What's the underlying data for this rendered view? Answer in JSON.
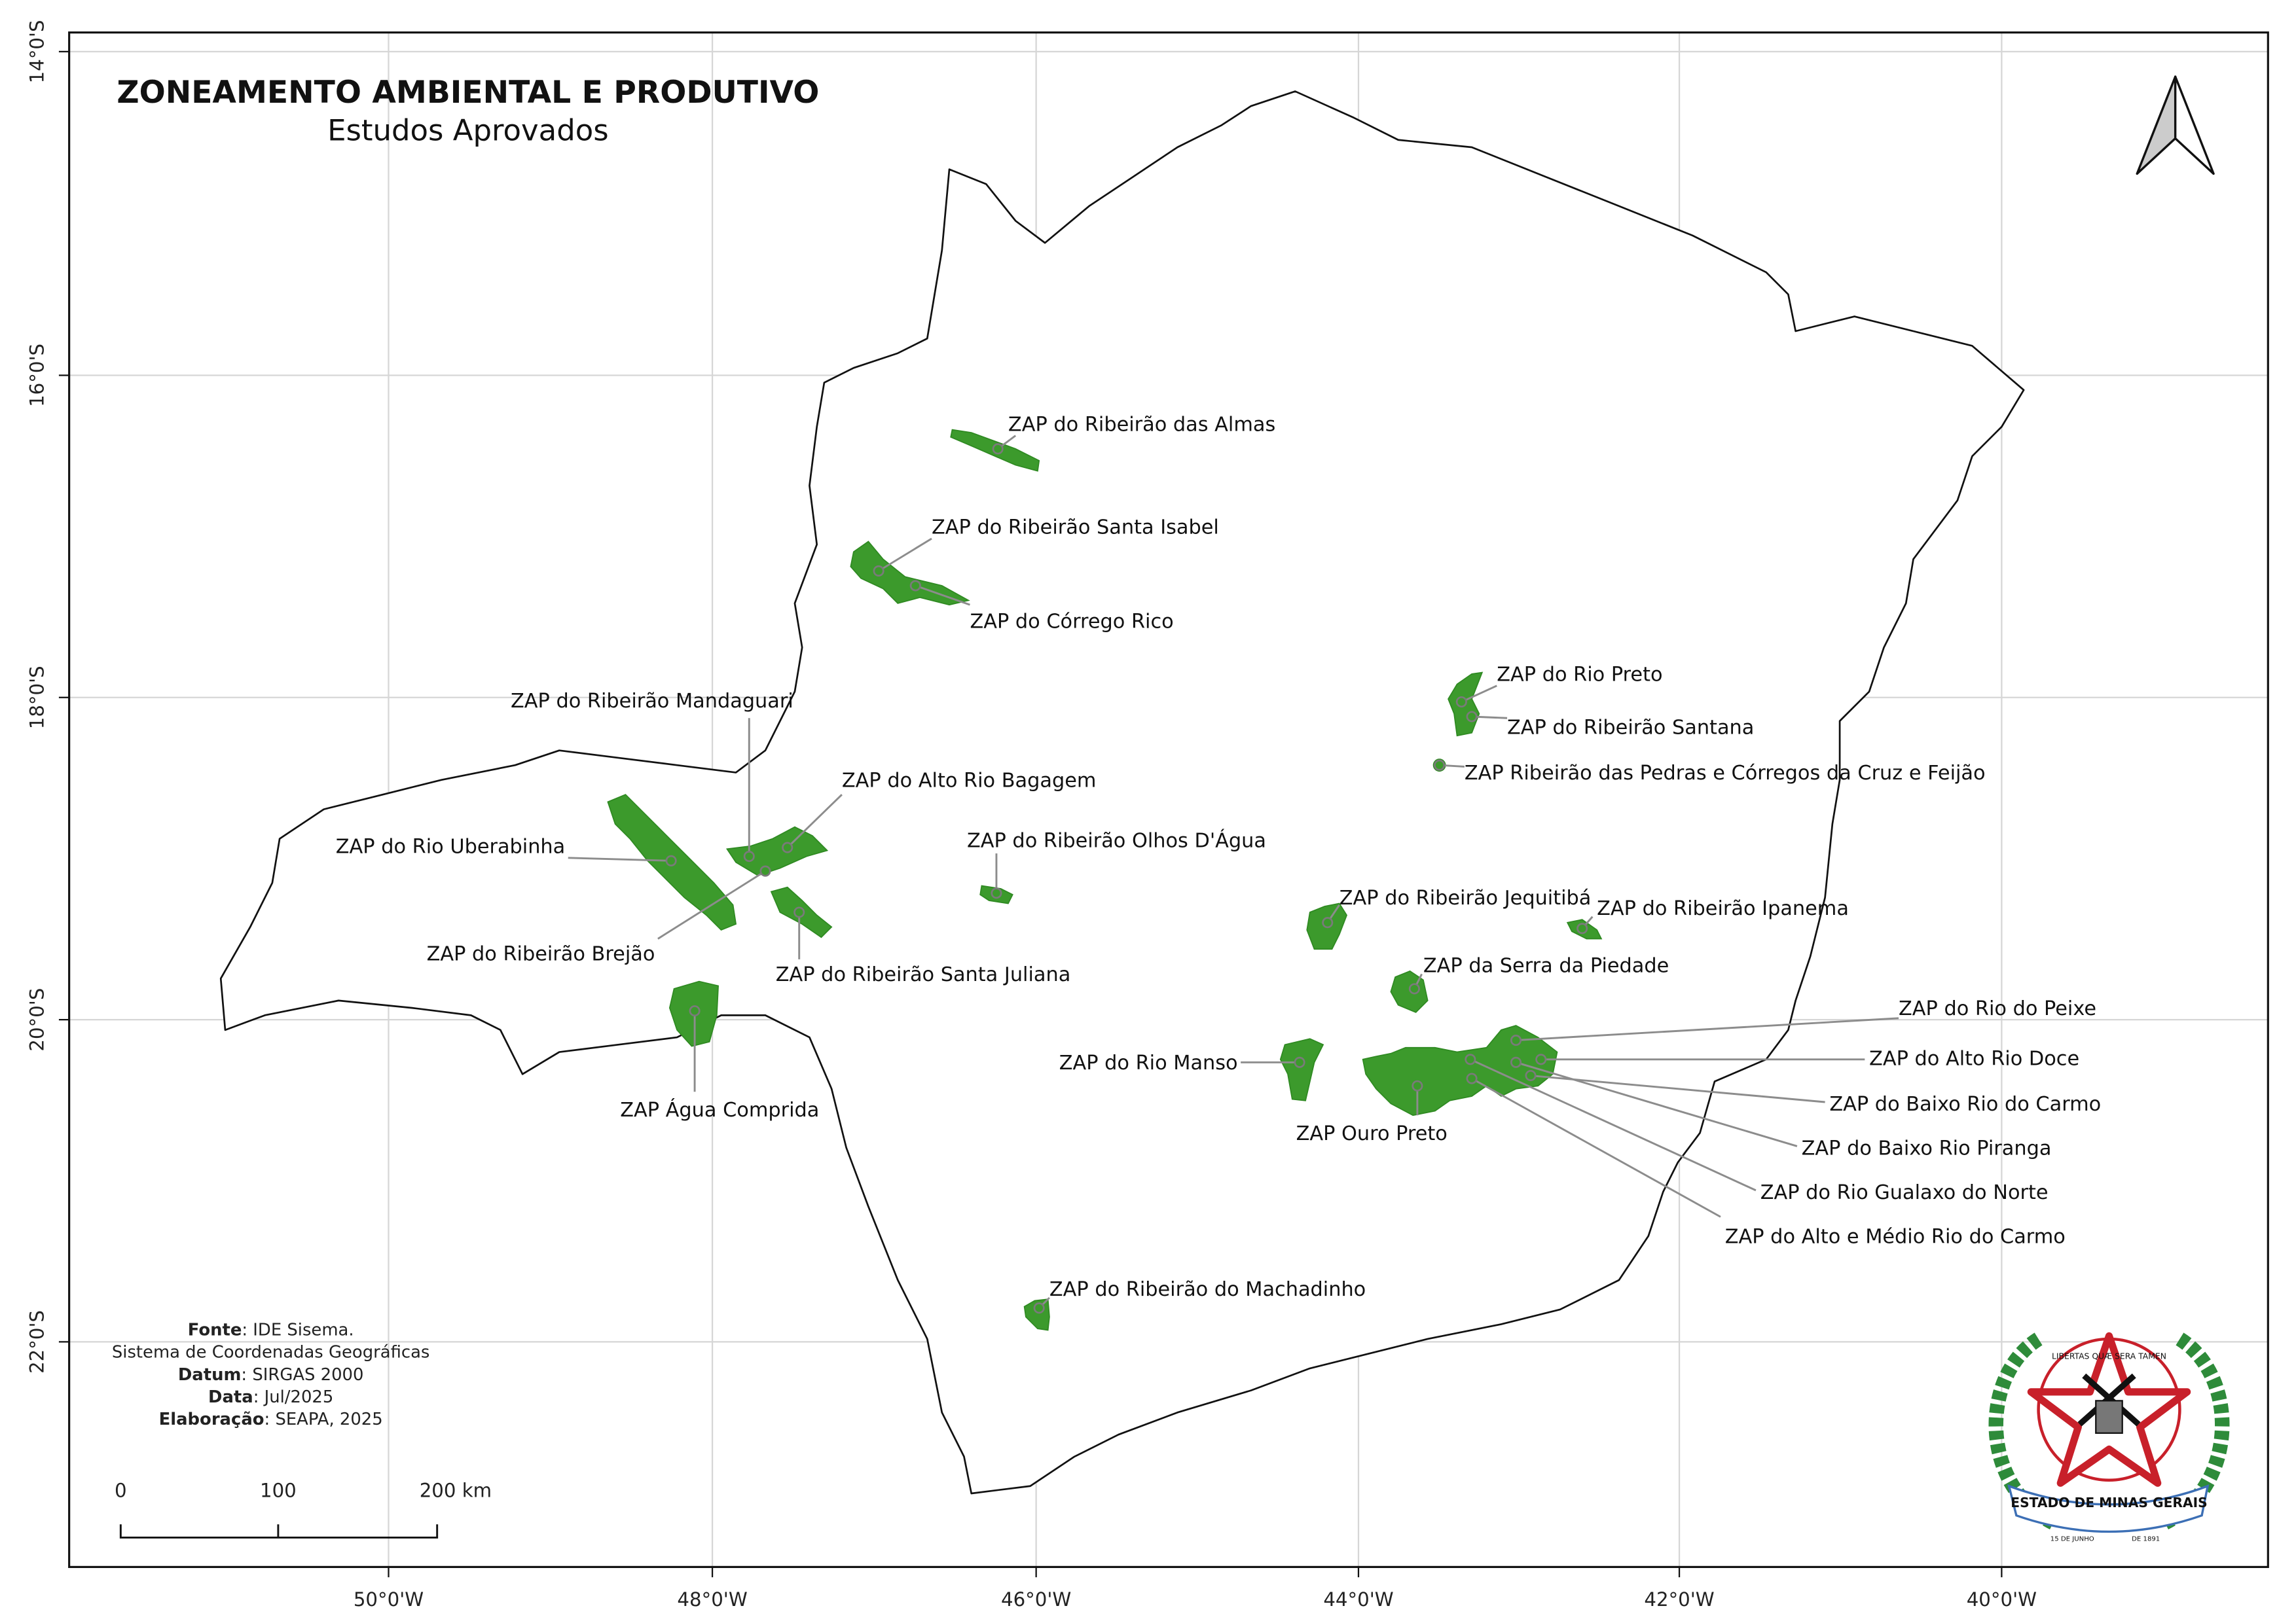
{
  "header": {
    "title": "ZONEAMENTO AMBIENTAL E PRODUTIVO",
    "subtitle": "Estudos Aprovados"
  },
  "map": {
    "latitude_labels": [
      "14°0'S",
      "16°0'S",
      "18°0'S",
      "20°0'S",
      "22°0'S"
    ],
    "longitude_labels": [
      "50°0'W",
      "48°0'W",
      "46°0'W",
      "44°0'W",
      "42°0'W",
      "40°0'W"
    ]
  },
  "zones": [
    {
      "label": "ZAP do Ribeirão das Almas"
    },
    {
      "label": "ZAP do Ribeirão Santa Isabel"
    },
    {
      "label": "ZAP do Córrego Rico"
    },
    {
      "label": "ZAP do Rio Preto"
    },
    {
      "label": "ZAP do Ribeirão Santana"
    },
    {
      "label": "ZAP Ribeirão das Pedras e Córregos da Cruz e Feijão"
    },
    {
      "label": "ZAP do Ribeirão Mandaguari"
    },
    {
      "label": "ZAP do Alto Rio Bagagem"
    },
    {
      "label": "ZAP do Ribeirão Olhos D'Água"
    },
    {
      "label": "ZAP do Rio Uberabinha"
    },
    {
      "label": "ZAP do Ribeirão Brejão"
    },
    {
      "label": "ZAP do Ribeirão Santa Juliana"
    },
    {
      "label": "ZAP do Ribeirão Jequitibá"
    },
    {
      "label": "ZAP do Ribeirão Ipanema"
    },
    {
      "label": "ZAP da Serra da Piedade"
    },
    {
      "label": "ZAP Água Comprida"
    },
    {
      "label": "ZAP do Rio Manso"
    },
    {
      "label": "ZAP Ouro Preto"
    },
    {
      "label": "ZAP do Rio do Peixe"
    },
    {
      "label": "ZAP do Alto Rio Doce"
    },
    {
      "label": "ZAP do Baixo Rio do Carmo"
    },
    {
      "label": "ZAP do Baixo Rio Piranga"
    },
    {
      "label": "ZAP do Rio Gualaxo do Norte"
    },
    {
      "label": "ZAP do Alto e Médio Rio do Carmo"
    },
    {
      "label": "ZAP do Ribeirão do Machadinho"
    }
  ],
  "notes": [
    {
      "label": "Fonte",
      "text": ": IDE Sisema."
    },
    {
      "text": "Sistema de Coordenadas Geográficas"
    },
    {
      "label": "Datum",
      "text": ": SIRGAS 2000"
    },
    {
      "label": "Data",
      "text": ": Jul/2025"
    },
    {
      "label": "Elaboração",
      "text": ": SEAPA, 2025"
    }
  ],
  "scale_bar": {
    "labels": [
      "0",
      "100",
      "200 km"
    ]
  },
  "emblem": {
    "motto": "LIBERTAS QUÆ SERA TAMEN",
    "name": "ESTADO DE MINAS GERAIS",
    "date_left": "15 DE JUNHO",
    "date_right": "DE 1891"
  }
}
